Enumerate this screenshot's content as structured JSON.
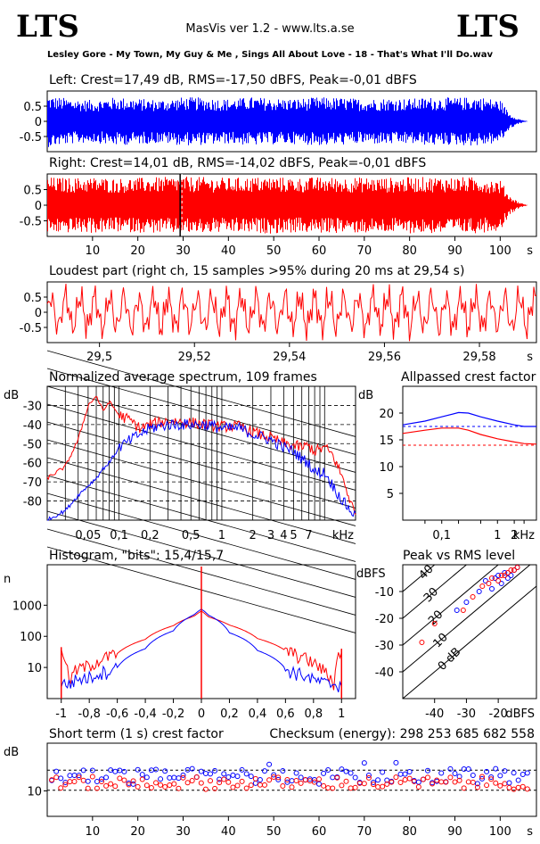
{
  "header": {
    "brand_left": "LTS",
    "brand_right": "LTS",
    "app_title": "MasVis ver 1.2 - www.lts.a.se",
    "track": "Lesley Gore - My Town, My Guy & Me , Sings All About Love - 18 - That's What I'll Do.wav"
  },
  "colors": {
    "left": "#0000ff",
    "right": "#ff0000",
    "axis": "#000000",
    "grid": "#000000"
  },
  "chart_data": [
    {
      "id": "left",
      "type": "area",
      "title": "Left: Crest=17,49 dB, RMS=-17,50 dBFS, Peak=-0,01 dBFS",
      "y_ticks": [
        "0.5",
        "0",
        "-0.5"
      ],
      "ylim": [
        -1,
        1
      ],
      "xlim": [
        0,
        108
      ],
      "envelope": {
        "x": [
          0,
          5,
          10,
          15,
          20,
          25,
          30,
          35,
          40,
          45,
          50,
          55,
          60,
          65,
          70,
          75,
          80,
          85,
          90,
          95,
          100,
          102,
          104,
          106
        ],
        "amp": [
          0.85,
          0.75,
          0.7,
          0.8,
          0.75,
          0.72,
          0.8,
          0.78,
          0.74,
          0.8,
          0.76,
          0.75,
          0.8,
          0.78,
          0.74,
          0.77,
          0.75,
          0.8,
          0.78,
          0.82,
          0.7,
          0.25,
          0.08,
          0.0
        ]
      }
    },
    {
      "id": "right",
      "type": "area",
      "title": "Right: Crest=14,01 dB, RMS=-14,02 dBFS, Peak=-0,01 dBFS",
      "y_ticks": [
        "0.5",
        "0",
        "-0.5"
      ],
      "x_ticks": [
        "10",
        "20",
        "30",
        "40",
        "50",
        "60",
        "70",
        "80",
        "90",
        "100"
      ],
      "x_unit": "s",
      "ylim": [
        -1,
        1
      ],
      "xlim": [
        0,
        108
      ],
      "marker_x": 29.54,
      "envelope": {
        "x": [
          0,
          5,
          10,
          15,
          20,
          25,
          30,
          35,
          40,
          45,
          50,
          55,
          60,
          65,
          70,
          75,
          80,
          85,
          90,
          95,
          100,
          102,
          104,
          106
        ],
        "amp": [
          0.9,
          0.88,
          0.9,
          0.86,
          0.88,
          0.9,
          0.92,
          0.9,
          0.88,
          0.9,
          0.91,
          0.88,
          0.9,
          0.89,
          0.9,
          0.88,
          0.9,
          0.91,
          0.9,
          0.9,
          0.8,
          0.3,
          0.1,
          0.0
        ]
      }
    },
    {
      "id": "loudest",
      "type": "line",
      "title": "Loudest part (right ch, 15 samples >95% during 20 ms at 29,54 s)",
      "y_ticks": [
        "0.5",
        "0",
        "-0.5"
      ],
      "x_ticks": [
        "29,5",
        "29,52",
        "29,54",
        "29,56",
        "29,58"
      ],
      "x_unit": "s",
      "xlim": [
        29.489,
        29.592
      ],
      "ylim": [
        -1,
        1
      ]
    },
    {
      "id": "spectrum",
      "type": "line",
      "title": "Normalized average spectrum, 109 frames",
      "ylabel": "dB",
      "y_ticks": [
        "-30",
        "-40",
        "-50",
        "-60",
        "-70",
        "-80"
      ],
      "x_ticks": [
        "0,05",
        "0,1",
        "0,2",
        "0,5",
        "1",
        "2",
        "3",
        "4",
        "5",
        "7"
      ],
      "x_unit": "kHz",
      "ylim": [
        -90,
        -20
      ],
      "xlim_khz": [
        0.02,
        20
      ],
      "series": [
        {
          "color": "red",
          "x": [
            0.02,
            0.03,
            0.04,
            0.05,
            0.06,
            0.07,
            0.08,
            0.1,
            0.13,
            0.16,
            0.2,
            0.3,
            0.5,
            0.7,
            1,
            1.5,
            2,
            3,
            4,
            5,
            6,
            7,
            8,
            10,
            12,
            15,
            20
          ],
          "y": [
            -68,
            -62,
            -48,
            -30,
            -25,
            -33,
            -28,
            -35,
            -38,
            -42,
            -40,
            -38,
            -39,
            -40,
            -41,
            -41,
            -44,
            -47,
            -50,
            -51,
            -52,
            -51,
            -54,
            -52,
            -56,
            -68,
            -88
          ]
        },
        {
          "color": "blue",
          "x": [
            0.02,
            0.03,
            0.04,
            0.05,
            0.06,
            0.07,
            0.08,
            0.1,
            0.13,
            0.16,
            0.2,
            0.3,
            0.5,
            0.7,
            1,
            1.5,
            2,
            3,
            4,
            5,
            6,
            7,
            8,
            10,
            12,
            15,
            20
          ],
          "y": [
            -90,
            -85,
            -77,
            -72,
            -68,
            -63,
            -60,
            -52,
            -48,
            -45,
            -42,
            -40,
            -40,
            -40,
            -42,
            -42,
            -45,
            -48,
            -52,
            -54,
            -58,
            -60,
            -65,
            -65,
            -72,
            -80,
            -88
          ]
        }
      ]
    },
    {
      "id": "allpassed",
      "type": "line",
      "title": "Allpassed crest factor",
      "ylabel": "dB",
      "y_ticks": [
        "20",
        "15",
        "10",
        "5"
      ],
      "x_ticks": [
        "0,1",
        "1",
        "2"
      ],
      "x_unit": "kHz",
      "ylim": [
        0,
        25
      ],
      "xlim_khz": [
        0.02,
        5
      ],
      "series": [
        {
          "color": "blue",
          "x": [
            0.02,
            0.05,
            0.1,
            0.2,
            0.3,
            0.5,
            1,
            2,
            3,
            5
          ],
          "y": [
            17.8,
            18.5,
            19.3,
            20.1,
            20.0,
            19.3,
            18.5,
            17.8,
            17.5,
            17.5
          ]
        },
        {
          "color": "red",
          "x": [
            0.02,
            0.05,
            0.1,
            0.2,
            0.3,
            0.5,
            1,
            2,
            3,
            5
          ],
          "y": [
            16.2,
            16.8,
            17.2,
            17.2,
            16.8,
            16.0,
            15.2,
            14.6,
            14.3,
            14.2
          ]
        }
      ],
      "reference_lines": [
        {
          "color": "blue",
          "y": 17.5
        },
        {
          "color": "red",
          "y": 14.0
        }
      ]
    },
    {
      "id": "histogram",
      "type": "line",
      "title": "Histogram, \"bits\": 15,4/15,7",
      "ylabel": "n",
      "y_ticks": [
        "1000",
        "100",
        "10"
      ],
      "x_ticks": [
        "-1",
        "-0,8",
        "-0,6",
        "-0,4",
        "-0,2",
        "0",
        "0,2",
        "0,4",
        "0,6",
        "0,8",
        "1"
      ],
      "xlim": [
        -1.1,
        1.1
      ],
      "ylim_log10": [
        0,
        4.3
      ],
      "series": [
        {
          "color": "red",
          "x": [
            -1,
            -0.95,
            -0.9,
            -0.8,
            -0.6,
            -0.4,
            -0.2,
            -0.05,
            0,
            0.05,
            0.2,
            0.4,
            0.6,
            0.8,
            0.9,
            0.95,
            1
          ],
          "y": [
            45,
            3,
            8,
            12,
            28,
            80,
            220,
            450,
            650,
            420,
            230,
            85,
            35,
            14,
            6,
            3,
            40
          ]
        },
        {
          "color": "blue",
          "x": [
            -1,
            -0.95,
            -0.9,
            -0.8,
            -0.6,
            -0.4,
            -0.2,
            -0.05,
            0,
            0.05,
            0.2,
            0.4,
            0.6,
            0.8,
            0.9,
            0.95,
            1
          ],
          "y": [
            3,
            3,
            4,
            5,
            10,
            40,
            150,
            500,
            750,
            480,
            130,
            35,
            9,
            4,
            3,
            3,
            3
          ]
        }
      ]
    },
    {
      "id": "peak_vs_rms",
      "type": "scatter",
      "title": "Peak vs RMS level",
      "ylabel": "dBFS",
      "xlabel": "dBFS",
      "y_ticks": [
        "-10",
        "-20",
        "-30",
        "-40"
      ],
      "x_ticks": [
        "-40",
        "-30",
        "-20"
      ],
      "xlim": [
        -50,
        -8
      ],
      "ylim": [
        -50,
        0
      ],
      "diagonal_labels": [
        "40",
        "30",
        "20",
        "10",
        "0 dB"
      ],
      "series": [
        {
          "color": "blue",
          "x": [
            -33,
            -30,
            -26,
            -24,
            -22,
            -21,
            -20,
            -19,
            -18,
            -17,
            -16,
            -15,
            -14
          ],
          "y": [
            -17,
            -14,
            -10,
            -6,
            -9,
            -5,
            -4,
            -7,
            -3,
            -5,
            -4,
            -2,
            -1
          ]
        },
        {
          "color": "red",
          "x": [
            -44,
            -40,
            -31,
            -28,
            -25,
            -23,
            -22,
            -20,
            -19,
            -18,
            -17,
            -16,
            -15,
            -14
          ],
          "y": [
            -29,
            -22,
            -17,
            -12,
            -8,
            -7,
            -5,
            -6,
            -4,
            -4,
            -3,
            -2,
            -2,
            -1
          ]
        }
      ]
    },
    {
      "id": "short_term_crest",
      "type": "scatter",
      "title": "Short term (1 s) crest factor",
      "checksum": "Checksum (energy):   298 253 685 682 558",
      "ylabel": "dB",
      "y_ticks": [
        "10"
      ],
      "x_ticks": [
        "10",
        "20",
        "30",
        "40",
        "50",
        "60",
        "70",
        "80",
        "90",
        "100"
      ],
      "x_unit": "s",
      "xlim": [
        0,
        108
      ],
      "ylim": [
        2,
        25
      ],
      "reference_lines": [
        {
          "color": "blue",
          "y": 16.5
        },
        {
          "color": "red",
          "y": 10.2
        }
      ]
    }
  ]
}
